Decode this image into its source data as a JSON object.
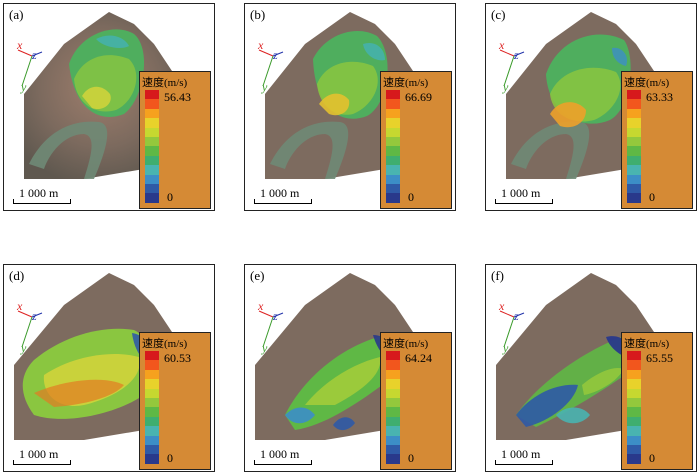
{
  "legend_title": "速度(m/s)",
  "legend_colors": [
    "#d7191c",
    "#f2561d",
    "#f6a11e",
    "#e8d22b",
    "#c6d830",
    "#94c83c",
    "#5fb845",
    "#3fae6f",
    "#49b4b0",
    "#3c8ec6",
    "#2f5aa6",
    "#29398b"
  ],
  "scale_label": "1 000 m",
  "axis_labels": {
    "x": "x",
    "z": "z",
    "y": "y"
  },
  "panels": [
    {
      "label": "(a)",
      "max": "56.43",
      "min": "0"
    },
    {
      "label": "(b)",
      "max": "66.69",
      "min": "0"
    },
    {
      "label": "(c)",
      "max": "63.33",
      "min": "0"
    },
    {
      "label": "(d)",
      "max": "60.53",
      "min": "0"
    },
    {
      "label": "(e)",
      "max": "64.24",
      "min": "0"
    },
    {
      "label": "(f)",
      "max": "65.55",
      "min": "0"
    }
  ]
}
